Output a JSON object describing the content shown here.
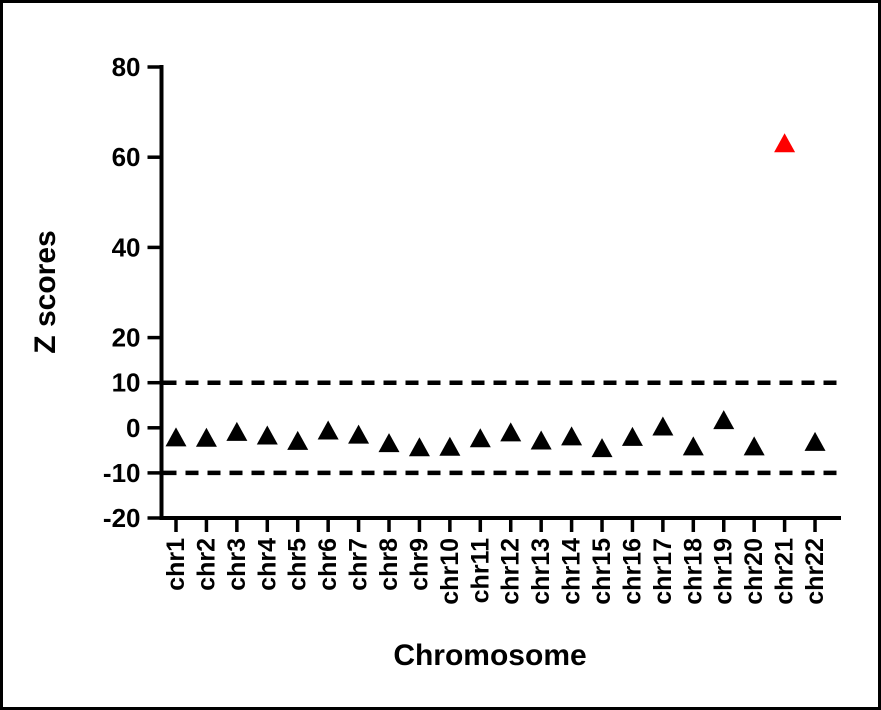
{
  "figure": {
    "background_color": "#ffffff",
    "frame_color": "#000000"
  },
  "chart_data": {
    "type": "scatter",
    "marker_shape": "triangle-up",
    "title": "",
    "xlabel": "Chromosome",
    "ylabel": "Z scores",
    "categories": [
      "chr1",
      "chr2",
      "chr3",
      "chr4",
      "chr5",
      "chr6",
      "chr7",
      "chr8",
      "chr9",
      "chr10",
      "chr11",
      "chr12",
      "chr13",
      "chr14",
      "chr15",
      "chr16",
      "chr17",
      "chr18",
      "chr19",
      "chr20",
      "chr21",
      "chr22"
    ],
    "values": [
      -2.0,
      -2.1,
      -0.8,
      -1.6,
      -2.8,
      -0.5,
      -1.4,
      -3.3,
      -4.2,
      -4.1,
      -2.2,
      -0.9,
      -2.7,
      -1.8,
      -4.4,
      -1.9,
      0.4,
      -4.0,
      1.8,
      -4.0,
      63.2,
      -3.0
    ],
    "highlight_category": "chr21",
    "highlight_value": 63.2,
    "highlight_color": "#fe0000",
    "marker_color": "#000000",
    "ylim": [
      -20,
      80
    ],
    "yticks": [
      80,
      60,
      40,
      20,
      10,
      0,
      -10,
      -20
    ],
    "threshold_lines": [
      10,
      -10
    ],
    "threshold_style": "dashed",
    "axis_color": "#000000",
    "grid": false,
    "legend": null
  }
}
